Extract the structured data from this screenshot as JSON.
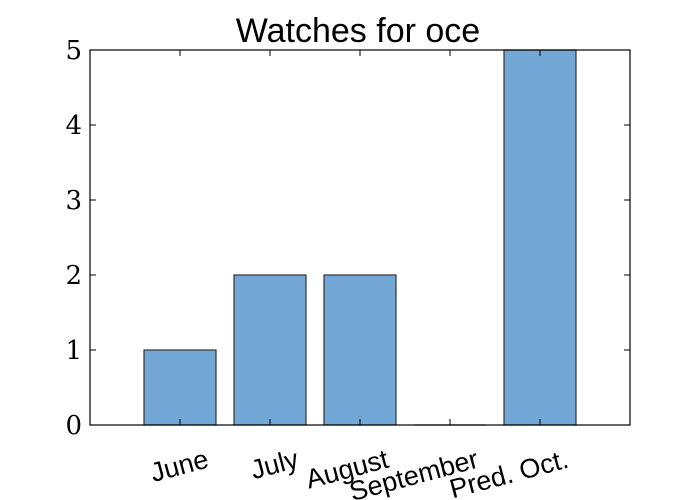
{
  "chart_data": {
    "type": "bar",
    "title": "Watches for oce",
    "xlabel": "",
    "ylabel": "",
    "categories": [
      "June",
      "July",
      "August",
      "September",
      "Pred. Oct."
    ],
    "values": [
      1,
      2,
      2,
      0,
      5
    ],
    "ylim": [
      0,
      5
    ],
    "yticks": [
      "0",
      "1",
      "2",
      "3",
      "4",
      "5"
    ],
    "bar_color": "#72a7d6",
    "bar_edge_color": "#333333",
    "grid": false,
    "legend": "none"
  }
}
